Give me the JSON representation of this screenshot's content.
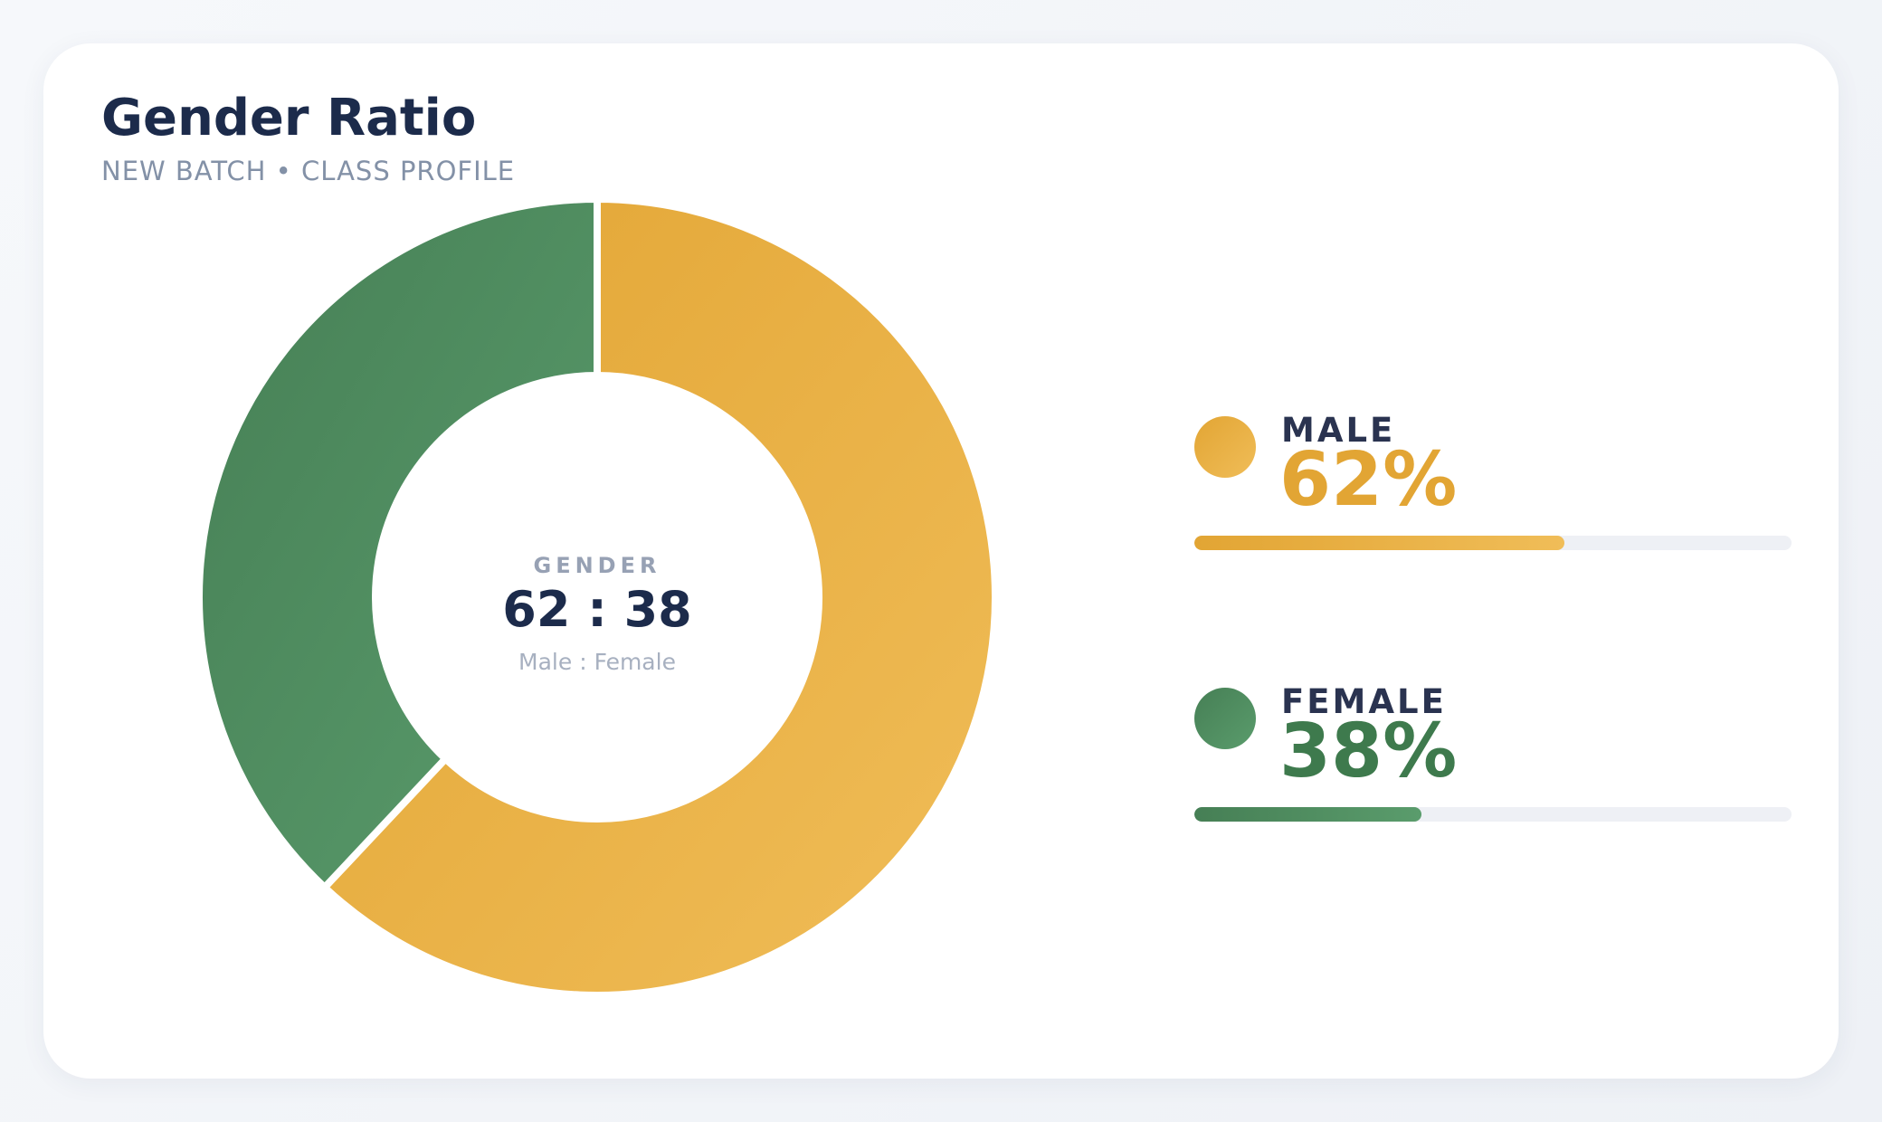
{
  "header": {
    "title": "Gender Ratio",
    "subtitle": "NEW BATCH • CLASS PROFILE"
  },
  "center": {
    "caption": "GENDER",
    "ratio": "62 : 38",
    "sub": "Male : Female"
  },
  "legend": [
    {
      "label": "MALE",
      "percent": "62%"
    },
    {
      "label": "FEMALE",
      "percent": "38%"
    }
  ],
  "colors": {
    "male_start": "#e2a534",
    "male_end": "#f0bd58",
    "female_start": "#467f55",
    "female_end": "#5a9c6c",
    "title": "#1c2b4b"
  },
  "chart_data": {
    "type": "pie",
    "variant": "donut",
    "title": "Gender Ratio",
    "subtitle": "NEW BATCH • CLASS PROFILE",
    "categories": [
      "MALE",
      "FEMALE"
    ],
    "values": [
      62,
      38
    ],
    "unit": "%",
    "legend_placement": "right"
  }
}
